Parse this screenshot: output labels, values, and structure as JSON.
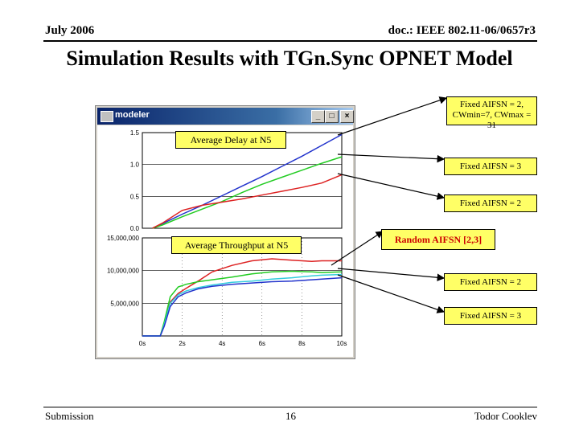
{
  "header": {
    "date": "July 2006",
    "doc_id": "doc.: IEEE 802.11-06/0657r3",
    "title": "Simulation Results with TGn.Sync OPNET Model"
  },
  "footer": {
    "left": "Submission",
    "page": "16",
    "author": "Todor Cooklev"
  },
  "window": {
    "app_name": "modeler",
    "min": "_",
    "max": "□",
    "close": "×"
  },
  "callouts": {
    "delay_label": "Average Delay at N5",
    "throughput_label": "Average Throughput at N5",
    "fixed_cw": "Fixed AIFSN = 2, CWmin=7, CWmax = 31",
    "fixed3_top": "Fixed AIFSN = 3",
    "fixed2_top": "Fixed AIFSN = 2",
    "random": "Random AIFSN [2,3]",
    "fixed2_bottom": "Fixed AIFSN = 2",
    "fixed3_bottom": "Fixed AIFSN = 3"
  },
  "colors": {
    "blue": "#2233cc",
    "green": "#22cc22",
    "red": "#dd2222",
    "cyan": "#33ccdd",
    "callout": "#ffff66"
  },
  "chart_data": [
    {
      "type": "line",
      "title": "",
      "yticks": [
        "1.5",
        "1.0",
        "0.5",
        "0.0"
      ],
      "ylim": [
        0,
        1.5
      ],
      "xlim": [
        0,
        10
      ],
      "grid": true,
      "series": [
        {
          "color": "blue",
          "x": [
            0.5,
            1,
            2,
            3,
            4,
            5,
            6,
            7,
            8,
            9,
            10
          ],
          "y": [
            0.0,
            0.07,
            0.22,
            0.36,
            0.51,
            0.66,
            0.81,
            0.97,
            1.13,
            1.3,
            1.47
          ]
        },
        {
          "color": "green",
          "x": [
            0.5,
            1,
            2,
            3,
            4,
            5,
            6,
            7,
            8,
            9,
            10
          ],
          "y": [
            0.0,
            0.05,
            0.18,
            0.3,
            0.42,
            0.56,
            0.69,
            0.8,
            0.91,
            1.02,
            1.12
          ]
        },
        {
          "color": "red",
          "x": [
            0.5,
            1,
            2,
            3,
            4,
            5,
            6,
            7,
            8,
            9,
            10
          ],
          "y": [
            0.0,
            0.08,
            0.28,
            0.36,
            0.41,
            0.46,
            0.52,
            0.58,
            0.64,
            0.71,
            0.84
          ]
        }
      ]
    },
    {
      "type": "line",
      "title": "",
      "yticks": [
        "15,000,000",
        "10,000,000",
        "5,000,000"
      ],
      "xticks": [
        "0s",
        "2s",
        "4s",
        "6s",
        "8s",
        "10s"
      ],
      "ylim": [
        0,
        15000000
      ],
      "xlim": [
        0,
        10
      ],
      "grid": true,
      "series": [
        {
          "color": "red",
          "x": [
            0,
            0.9,
            1.1,
            1.4,
            1.8,
            2.2,
            2.8,
            3.5,
            4.5,
            5.5,
            6.5,
            7.5,
            8.5,
            9,
            10
          ],
          "y": [
            0,
            0,
            2000000,
            5200000,
            6500000,
            7300000,
            8400000,
            9800000,
            10800000,
            11500000,
            11800000,
            11600000,
            11400000,
            11500000,
            11500000
          ]
        },
        {
          "color": "green",
          "x": [
            0,
            0.9,
            1.1,
            1.4,
            1.8,
            2.2,
            2.8,
            3.5,
            4.5,
            5.5,
            6.5,
            7.5,
            8.5,
            9,
            10
          ],
          "y": [
            0,
            0,
            2200000,
            6000000,
            7500000,
            7900000,
            8300000,
            8600000,
            9000000,
            9500000,
            9800000,
            9900000,
            9800000,
            9700000,
            9800000
          ]
        },
        {
          "color": "cyan",
          "x": [
            0,
            0.9,
            1.1,
            1.4,
            1.8,
            2.2,
            2.8,
            3.5,
            4.5,
            5.5,
            6.5,
            7.5,
            8.5,
            9,
            10
          ],
          "y": [
            0,
            0,
            1800000,
            5000000,
            6300000,
            6900000,
            7400000,
            7800000,
            8200000,
            8400000,
            8700000,
            8900000,
            9200000,
            9300000,
            9400000
          ]
        },
        {
          "color": "blue",
          "x": [
            0,
            0.9,
            1.1,
            1.4,
            1.8,
            2.2,
            2.8,
            3.5,
            4.5,
            5.5,
            6.5,
            7.5,
            8.5,
            9,
            10
          ],
          "y": [
            0,
            0,
            1500000,
            4500000,
            6000000,
            6600000,
            7200000,
            7600000,
            7900000,
            8100000,
            8300000,
            8400000,
            8600000,
            8700000,
            8900000
          ]
        }
      ]
    }
  ]
}
